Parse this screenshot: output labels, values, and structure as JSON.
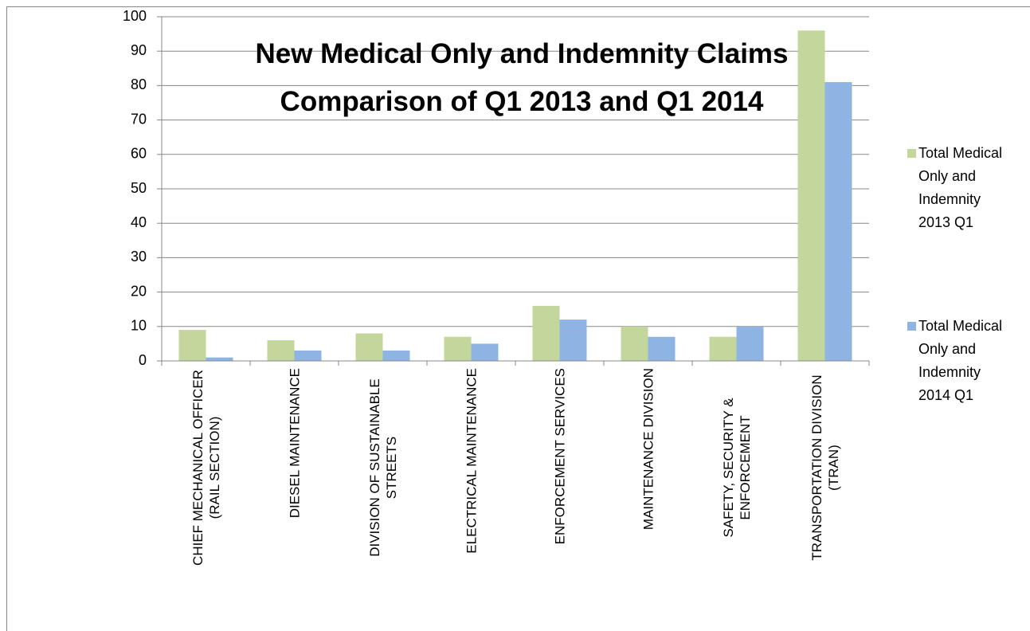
{
  "chart_data": {
    "type": "bar",
    "title": "New Medical Only and Indemnity Claims Comparison of Q1 2013 and Q1 2014",
    "categories": [
      "CHIEF MECHANICAL OFFICER (RAIL SECTION)",
      "DIESEL MAINTENANCE",
      "DIVISION OF SUSTAINABLE STREETS",
      "ELECTRICAL MAINTENANCE",
      "ENFORCEMENT SERVICES",
      "MAINTENANCE DIVISION",
      "SAFETY, SECURITY & ENFORCEMENT",
      "TRANSPORTATION DIVISION (TRAN)"
    ],
    "series": [
      {
        "name": "Total Medical Only and Indemnity 2013 Q1",
        "color": "#c3d69b",
        "values": [
          9,
          6,
          8,
          7,
          16,
          10,
          7,
          96
        ]
      },
      {
        "name": "Total Medical Only and Indemnity 2014 Q1",
        "color": "#8eb4e3",
        "values": [
          1,
          3,
          3,
          5,
          12,
          7,
          10,
          81
        ]
      }
    ],
    "ylim": [
      0,
      100
    ],
    "yticks": [
      0,
      10,
      20,
      30,
      40,
      50,
      60,
      70,
      80,
      90,
      100
    ],
    "grid": true,
    "legend": "right"
  }
}
